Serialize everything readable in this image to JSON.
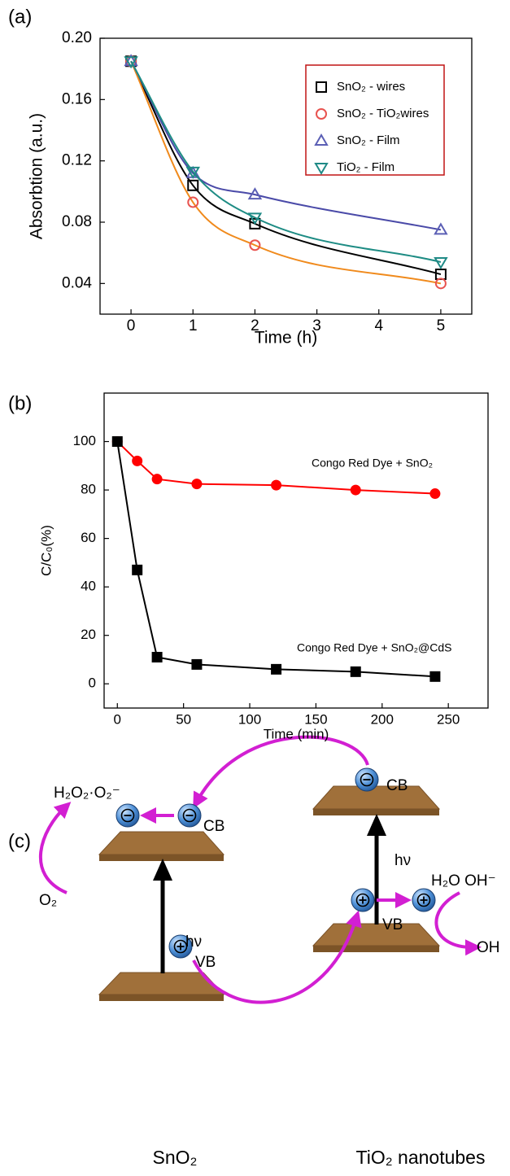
{
  "chart_data": [
    {
      "type": "line",
      "panel_label": "(a)",
      "x_label": "Time (h)",
      "y_label": "Absorbtion (a.u.)",
      "x": [
        0,
        1,
        2,
        5
      ],
      "xlim": [
        -0.5,
        5.5
      ],
      "xticks": [
        0,
        1,
        2,
        3,
        4,
        5
      ],
      "ylim": [
        0.02,
        0.2
      ],
      "yticks": [
        0.04,
        0.08,
        0.12,
        0.16,
        {
          "value": 0.2,
          "label": "0.20"
        }
      ],
      "smooth": true,
      "marker_fill": false,
      "legend": "upper right",
      "series": [
        {
          "name": "SnO₂ - wires",
          "color": "#000000",
          "line_color": "#000000",
          "marker": "square",
          "values": [
            0.185,
            0.104,
            0.079,
            0.046
          ]
        },
        {
          "name": "SnO₂ - TiO₂wires",
          "color": "#e8534f",
          "line_color": "#f08a1c",
          "marker": "circle",
          "values": [
            0.185,
            0.093,
            0.065,
            0.04
          ]
        },
        {
          "name": "SnO₂ - Film",
          "color": "#5b5fb5",
          "line_color": "#4a4aa8",
          "marker": "triangle",
          "values": [
            0.185,
            0.112,
            0.098,
            0.075
          ]
        },
        {
          "name": "TiO₂ - Film",
          "color": "#1f8a86",
          "line_color": "#1e8c84",
          "marker": "triangle-down",
          "values": [
            0.185,
            0.113,
            0.083,
            0.054
          ]
        }
      ]
    },
    {
      "type": "line",
      "panel_label": "(b)",
      "x_label": "Time (min)",
      "y_label": "C/C₀(%)",
      "x": [
        0,
        15,
        30,
        60,
        120,
        180,
        240
      ],
      "xlim": [
        -10,
        280
      ],
      "xticks": [
        0,
        50,
        100,
        150,
        200,
        250
      ],
      "ylim": [
        -10,
        120
      ],
      "yticks": [
        0,
        20,
        40,
        60,
        80,
        100
      ],
      "smooth": false,
      "marker_fill": true,
      "annotations": [
        "Congo Red Dye + SnO₂",
        "Congo Red Dye + SnO₂@CdS"
      ],
      "series": [
        {
          "color": "#ff0000",
          "line_color": "#ff0000",
          "marker": "circle",
          "values": [
            100,
            92,
            84.5,
            82.5,
            82,
            80,
            78.5
          ]
        },
        {
          "color": "#000000",
          "line_color": "#000000",
          "marker": "square",
          "values": [
            100,
            47,
            11,
            8,
            6,
            5,
            3
          ]
        }
      ]
    }
  ],
  "diagram": {
    "panel_label": "(c)",
    "sno2": {
      "title": "SnO₂",
      "cb": "CB",
      "vb": "VB",
      "excitation": "hν",
      "reactant": "O₂",
      "product": "H₂O₂·O₂⁻"
    },
    "tio2": {
      "title": "TiO₂ nanotubes",
      "cb": "CB",
      "vb": "VB",
      "excitation": "hν",
      "reactant": "H₂O OH⁻",
      "product": "OH"
    }
  }
}
